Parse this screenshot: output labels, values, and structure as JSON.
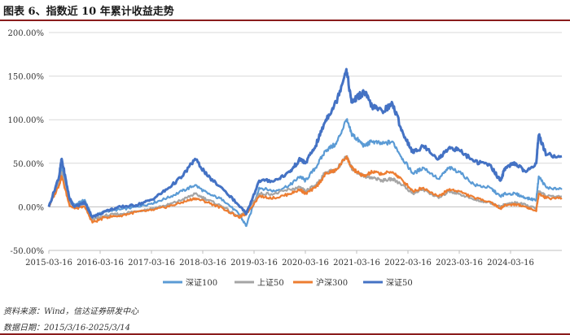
{
  "title": "图表 6、指数近 10 年累计收益走势",
  "footnote_source": "资料来源：Wind，信达证券研发中心",
  "footnote_date": "数据日期：2015/3/16-2025/3/14",
  "chart_data": {
    "type": "line",
    "title": "图表 6、指数近 10 年累计收益走势",
    "xlabel": "",
    "ylabel": "",
    "xlim": [
      2015.2,
      2025.2
    ],
    "ylim": [
      -50,
      200
    ],
    "y_ticks": [
      -50,
      0,
      50,
      100,
      150,
      200
    ],
    "y_tick_labels": [
      "-50.00%",
      "0.00%",
      "50.00%",
      "100.00%",
      "150.00%",
      "200.00%"
    ],
    "x_ticks": [
      2015.2,
      2016.2,
      2017.2,
      2018.2,
      2019.2,
      2020.2,
      2021.2,
      2022.2,
      2023.2,
      2024.2
    ],
    "x_tick_labels": [
      "2015-03-16",
      "2016-03-16",
      "2017-03-16",
      "2018-03-16",
      "2019-03-16",
      "2020-03-16",
      "2021-03-16",
      "2022-03-16",
      "2023-03-16",
      "2024-03-16"
    ],
    "grid": "horizontal",
    "legend_position": "bottom",
    "series": [
      {
        "name": "深证100",
        "color": "#5b9bd5",
        "x": [
          2015.2,
          2015.4,
          2015.45,
          2015.6,
          2015.7,
          2015.9,
          2016.05,
          2016.3,
          2016.6,
          2016.9,
          2017.2,
          2017.5,
          2017.8,
          2018.05,
          2018.3,
          2018.6,
          2018.9,
          2019.05,
          2019.3,
          2019.6,
          2019.9,
          2020.1,
          2020.2,
          2020.4,
          2020.6,
          2020.8,
          2021.0,
          2021.1,
          2021.2,
          2021.35,
          2021.5,
          2021.7,
          2021.9,
          2022.1,
          2022.3,
          2022.5,
          2022.8,
          2023.0,
          2023.2,
          2023.5,
          2023.8,
          2024.0,
          2024.1,
          2024.3,
          2024.5,
          2024.7,
          2024.75,
          2024.9,
          2025.2
        ],
        "values": [
          0,
          28,
          45,
          8,
          2,
          8,
          -12,
          -5,
          -3,
          0,
          4,
          10,
          18,
          25,
          15,
          8,
          -8,
          -22,
          22,
          18,
          25,
          35,
          30,
          45,
          65,
          72,
          100,
          84,
          78,
          70,
          75,
          72,
          75,
          55,
          38,
          45,
          32,
          45,
          40,
          25,
          22,
          12,
          15,
          15,
          10,
          8,
          35,
          22,
          20
        ]
      },
      {
        "name": "上证50",
        "color": "#a5a5a5",
        "x": [
          2015.2,
          2015.4,
          2015.45,
          2015.6,
          2015.7,
          2015.9,
          2016.05,
          2016.3,
          2016.6,
          2016.9,
          2017.2,
          2017.5,
          2017.8,
          2018.05,
          2018.3,
          2018.6,
          2018.9,
          2019.05,
          2019.3,
          2019.6,
          2019.9,
          2020.1,
          2020.2,
          2020.4,
          2020.6,
          2020.8,
          2021.0,
          2021.1,
          2021.2,
          2021.35,
          2021.5,
          2021.7,
          2021.9,
          2022.1,
          2022.3,
          2022.5,
          2022.8,
          2023.0,
          2023.2,
          2023.5,
          2023.8,
          2024.0,
          2024.1,
          2024.3,
          2024.5,
          2024.7,
          2024.75,
          2024.9,
          2025.2
        ],
        "values": [
          0,
          30,
          40,
          5,
          0,
          0,
          -15,
          -10,
          -8,
          -5,
          -2,
          2,
          8,
          15,
          8,
          0,
          -12,
          -5,
          15,
          15,
          20,
          22,
          18,
          25,
          40,
          42,
          58,
          45,
          40,
          35,
          34,
          30,
          32,
          25,
          15,
          20,
          10,
          18,
          15,
          8,
          5,
          0,
          3,
          5,
          2,
          -2,
          18,
          12,
          12
        ]
      },
      {
        "name": "沪深300",
        "color": "#ed7d31",
        "x": [
          2015.2,
          2015.4,
          2015.45,
          2015.6,
          2015.7,
          2015.9,
          2016.05,
          2016.3,
          2016.6,
          2016.9,
          2017.2,
          2017.5,
          2017.8,
          2018.05,
          2018.3,
          2018.6,
          2018.9,
          2019.05,
          2019.3,
          2019.6,
          2019.9,
          2020.1,
          2020.2,
          2020.4,
          2020.6,
          2020.8,
          2021.0,
          2021.1,
          2021.2,
          2021.35,
          2021.5,
          2021.7,
          2021.9,
          2022.1,
          2022.3,
          2022.5,
          2022.8,
          2023.0,
          2023.2,
          2023.5,
          2023.8,
          2024.0,
          2024.1,
          2024.3,
          2024.5,
          2024.7,
          2024.75,
          2024.9,
          2025.2
        ],
        "values": [
          0,
          25,
          35,
          2,
          -2,
          0,
          -18,
          -12,
          -10,
          -6,
          -4,
          0,
          5,
          10,
          5,
          -2,
          -12,
          -8,
          12,
          10,
          15,
          20,
          15,
          22,
          38,
          42,
          58,
          45,
          40,
          35,
          40,
          38,
          40,
          30,
          18,
          22,
          12,
          20,
          18,
          10,
          6,
          -2,
          2,
          3,
          0,
          -5,
          15,
          10,
          10
        ]
      },
      {
        "name": "深证50",
        "color": "#4472c4",
        "x": [
          2015.2,
          2015.4,
          2015.45,
          2015.6,
          2015.7,
          2015.9,
          2016.05,
          2016.3,
          2016.6,
          2016.9,
          2017.2,
          2017.5,
          2017.8,
          2018.05,
          2018.3,
          2018.6,
          2018.9,
          2019.05,
          2019.3,
          2019.6,
          2019.9,
          2020.1,
          2020.2,
          2020.4,
          2020.6,
          2020.8,
          2021.0,
          2021.1,
          2021.2,
          2021.35,
          2021.5,
          2021.7,
          2021.9,
          2022.1,
          2022.3,
          2022.5,
          2022.8,
          2023.0,
          2023.2,
          2023.5,
          2023.8,
          2024.0,
          2024.1,
          2024.3,
          2024.5,
          2024.7,
          2024.75,
          2024.9,
          2025.2
        ],
        "values": [
          0,
          35,
          55,
          10,
          0,
          5,
          -12,
          -5,
          0,
          2,
          8,
          20,
          35,
          55,
          35,
          20,
          2,
          -8,
          30,
          30,
          40,
          55,
          50,
          70,
          100,
          120,
          158,
          120,
          125,
          132,
          115,
          110,
          118,
          85,
          62,
          70,
          55,
          68,
          65,
          52,
          48,
          30,
          45,
          50,
          40,
          50,
          82,
          60,
          58
        ]
      }
    ]
  }
}
